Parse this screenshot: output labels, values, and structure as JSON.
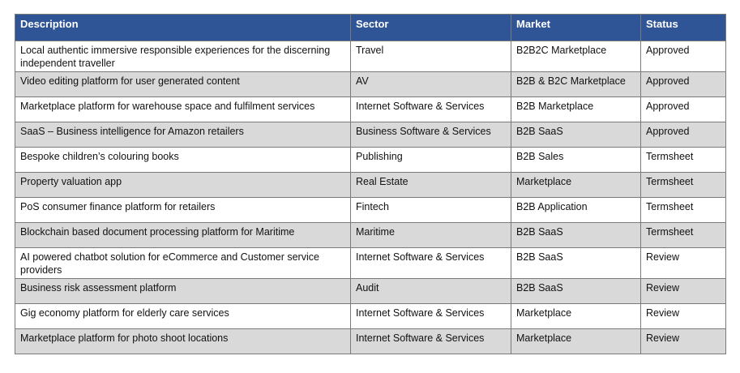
{
  "table": {
    "headers": [
      "Description",
      "Sector",
      "Market",
      "Status"
    ],
    "rows": [
      {
        "description": "Local authentic immersive responsible experiences for the discerning independent traveller",
        "sector": "Travel",
        "market": "B2B2C Marketplace",
        "status": "Approved",
        "tall": true
      },
      {
        "description": "Video editing platform for user generated content",
        "sector": "AV",
        "market": "B2B & B2C Marketplace",
        "status": "Approved"
      },
      {
        "description": "Marketplace platform for warehouse space and fulfilment services",
        "sector": "Internet Software & Services",
        "market": "B2B Marketplace",
        "status": "Approved"
      },
      {
        "description": "SaaS – Business intelligence for Amazon retailers",
        "sector": "Business Software & Services",
        "market": "B2B SaaS",
        "status": "Approved"
      },
      {
        "description": "Bespoke children’s colouring books",
        "sector": "Publishing",
        "market": "B2B Sales",
        "status": "Termsheet"
      },
      {
        "description": "Property valuation app",
        "sector": "Real Estate",
        "market": "Marketplace",
        "status": "Termsheet"
      },
      {
        "description": "PoS consumer finance platform for retailers",
        "sector": "Fintech",
        "market": "B2B Application",
        "status": "Termsheet"
      },
      {
        "description": "Blockchain based document processing platform for Maritime",
        "sector": "Maritime",
        "market": "B2B SaaS",
        "status": "Termsheet"
      },
      {
        "description": "AI powered chatbot solution for eCommerce and Customer service providers",
        "sector": "Internet Software & Services",
        "market": "B2B SaaS",
        "status": "Review",
        "tall": true
      },
      {
        "description": "Business risk assessment platform",
        "sector": "Audit",
        "market": "B2B SaaS",
        "status": "Review"
      },
      {
        "description": "Gig economy platform for elderly care services",
        "sector": "Internet Software & Services",
        "market": "Marketplace",
        "status": "Review"
      },
      {
        "description": "Marketplace platform for photo shoot locations",
        "sector": "Internet Software & Services",
        "market": "Marketplace",
        "status": "Review"
      }
    ]
  },
  "colors": {
    "header_bg": "#2f5597",
    "header_text": "#ffffff",
    "alt_row_bg": "#d9d9d9",
    "border": "#7a7a7a"
  }
}
